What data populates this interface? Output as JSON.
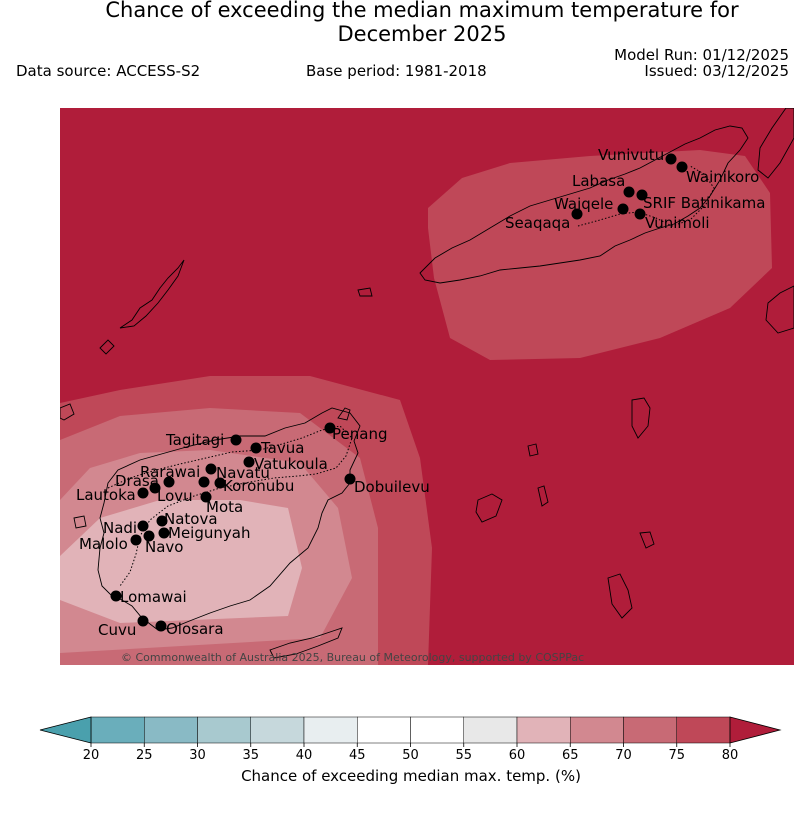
{
  "header": {
    "title_line1": "Chance of exceeding the median maximum temperature for",
    "title_line2": "December 2025",
    "data_source": "Data source: ACCESS-S2",
    "base_period": "Base period: 1981-2018",
    "model_run": "Model Run: 01/12/2025",
    "issued": "Issued: 03/12/2025"
  },
  "map": {
    "copyright": "© Commonwealth of Australia 2025, Bureau of Meteorology, supported by COSPPac",
    "stations": [
      {
        "name": "Vunivutu"
      },
      {
        "name": "Wainikoro"
      },
      {
        "name": "Labasa"
      },
      {
        "name": "SRIF Batinikama"
      },
      {
        "name": "Waiqele"
      },
      {
        "name": "Seaqaqa"
      },
      {
        "name": "Vunimoli"
      },
      {
        "name": "Penang"
      },
      {
        "name": "Tagitagi"
      },
      {
        "name": "Tavua"
      },
      {
        "name": "Vatukoula"
      },
      {
        "name": "Rarawai"
      },
      {
        "name": "Navatu"
      },
      {
        "name": "Drasa"
      },
      {
        "name": "Koronubu"
      },
      {
        "name": "Lautoka"
      },
      {
        "name": "Lovu"
      },
      {
        "name": "Dobuilevu"
      },
      {
        "name": "Mota"
      },
      {
        "name": "Natova"
      },
      {
        "name": "Nadi"
      },
      {
        "name": "Meigunyah"
      },
      {
        "name": "Malolo"
      },
      {
        "name": "Navo"
      },
      {
        "name": "Lomawai"
      },
      {
        "name": "Cuvu"
      },
      {
        "name": "Olosara"
      }
    ]
  },
  "colorbar": {
    "title": "Chance of exceeding median max. temp. (%)",
    "ticks": [
      "20",
      "25",
      "30",
      "35",
      "40",
      "45",
      "50",
      "55",
      "60",
      "65",
      "70",
      "75",
      "80"
    ],
    "colors": [
      "#6aaebb",
      "#89bac5",
      "#a8c9cf",
      "#c6d8dc",
      "#e8eef0",
      "#ffffff",
      "#ffffff",
      "#e8e8e8",
      "#e1b3b8",
      "#d28890",
      "#c86a75",
      "#bf4858"
    ],
    "under_color": "#4aa0ad",
    "over_color": "#b01d3a"
  }
}
